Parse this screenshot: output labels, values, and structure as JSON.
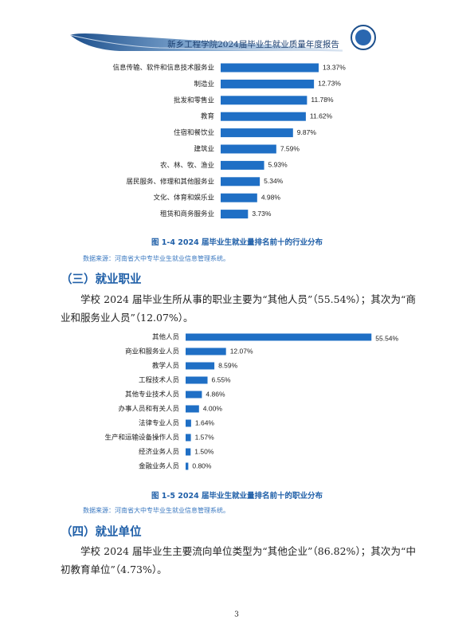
{
  "header": {
    "title": "新乡工程学院2024届毕业生就业质量年度报告"
  },
  "charts": [
    {
      "type": "bar",
      "categories": [
        "信息传输、软件和信息技术服务业",
        "制造业",
        "批发和零售业",
        "教育",
        "住宿和餐饮业",
        "建筑业",
        "农、林、牧、渔业",
        "居民服务、修理和其他服务业",
        "文化、体育和娱乐业",
        "租赁和商务服务业"
      ],
      "values": [
        13.37,
        12.73,
        11.78,
        11.62,
        9.87,
        7.59,
        5.93,
        5.34,
        4.98,
        3.73
      ],
      "value_labels": [
        "13.37%",
        "12.73%",
        "11.78%",
        "11.62%",
        "9.87%",
        "7.59%",
        "5.93%",
        "5.34%",
        "4.98%",
        "3.73%"
      ],
      "color": "#1f6fc5",
      "caption": "图 1-4  2024 届毕业生就业量排名前十的行业分布",
      "source": "数据来源：河南省大中专毕业生就业信息管理系统。"
    },
    {
      "type": "bar",
      "categories": [
        "其他人员",
        "商业和服务业人员",
        "教学人员",
        "工程技术人员",
        "其他专业技术人员",
        "办事人员和有关人员",
        "法律专业人员",
        "生产和运输设备操作人员",
        "经济业务人员",
        "金融业务人员"
      ],
      "values": [
        55.54,
        12.07,
        8.59,
        6.55,
        4.86,
        4.0,
        1.64,
        1.57,
        1.5,
        0.8
      ],
      "value_labels": [
        "55.54%",
        "12.07%",
        "8.59%",
        "6.55%",
        "4.86%",
        "4.00%",
        "1.64%",
        "1.57%",
        "1.50%",
        "0.80%"
      ],
      "color": "#1f6fc5",
      "caption": "图 1-5  2024 届毕业生就业量排名前十的职业分布",
      "source": "数据来源：河南省大中专毕业生就业信息管理系统。"
    }
  ],
  "sections": [
    {
      "heading": "（三）就业职业",
      "paragraph": "学校 2024 届毕业生所从事的职业主要为“其他人员”（55.54%）；其次为“商业和服务业人员”（12.07%）。"
    },
    {
      "heading": "（四）就业单位",
      "paragraph": "学校 2024 届毕业生主要流向单位类型为“其他企业”（86.82%）；其次为“中初教育单位”（4.73%）。"
    }
  ],
  "page_number": "3"
}
